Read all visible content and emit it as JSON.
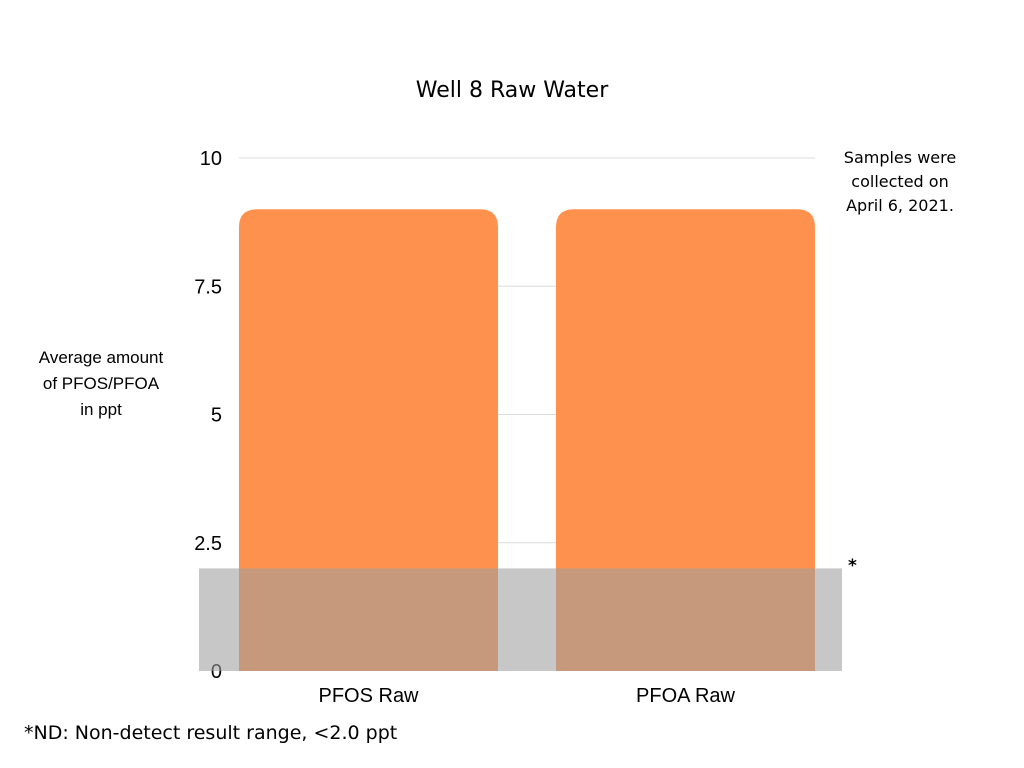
{
  "chart_data": {
    "type": "bar",
    "title": "Well 8 Raw Water",
    "ylabel_lines": [
      "Average amount",
      "of PFOS/PFOA",
      "in ppt"
    ],
    "xlabel": "",
    "categories": [
      "PFOS Raw",
      "PFOA Raw"
    ],
    "values": [
      9,
      9
    ],
    "ylim": [
      0,
      10
    ],
    "yticks": [
      0,
      2.5,
      5,
      7.5,
      10
    ],
    "ytick_labels": [
      "0",
      "2.5",
      "5",
      "7.5",
      "10"
    ],
    "grid": true,
    "bar_color": "#fe914d",
    "non_detect_band": {
      "range": [
        0,
        2
      ],
      "color": "#9e9e9e",
      "marker": "*"
    },
    "annotation_lines": [
      "Samples were",
      "collected on",
      "April 6, 2021."
    ],
    "footnote": "*ND: Non-detect result range, <2.0 ppt"
  }
}
